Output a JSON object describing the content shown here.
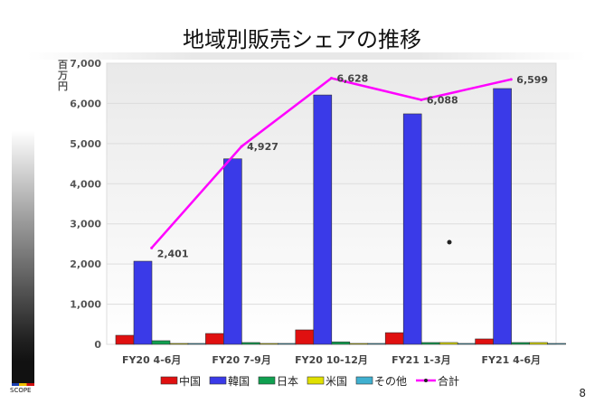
{
  "page_number": "8",
  "logo_text": "SCOPE",
  "chart_data": {
    "type": "bar",
    "title": "地域別販売シェアの推移",
    "ylabel": "百万円",
    "ylim": [
      0,
      7000
    ],
    "yticks": [
      "0",
      "1,000",
      "2,000",
      "3,000",
      "4,000",
      "5,000",
      "6,000",
      "7,000"
    ],
    "grid": true,
    "legend_position": "bottom",
    "categories": [
      "FY20 4-6月",
      "FY20 7-9月",
      "FY20 10-12月",
      "FY21 1-3月",
      "FY21 4-6月"
    ],
    "series": [
      {
        "name": "中国",
        "type": "bar",
        "color": "#e01010",
        "values": [
          225,
          270,
          360,
          290,
          135
        ]
      },
      {
        "name": "韓国",
        "type": "bar",
        "color": "#3a3ae8",
        "values": [
          2070,
          4620,
          6210,
          5740,
          6370
        ]
      },
      {
        "name": "日本",
        "type": "bar",
        "color": "#10a050",
        "values": [
          90,
          30,
          60,
          15,
          40
        ]
      },
      {
        "name": "米国",
        "type": "bar",
        "color": "#e0e000",
        "values": [
          0,
          0,
          0,
          20,
          30
        ]
      },
      {
        "name": "その他",
        "type": "bar",
        "color": "#40b0d0",
        "values": [
          0,
          0,
          0,
          0,
          0
        ]
      },
      {
        "name": "合計",
        "type": "line",
        "color": "#ff00ff",
        "values": [
          2401,
          4927,
          6628,
          6088,
          6599
        ],
        "labels": [
          "2,401",
          "4,927",
          "6,628",
          "6,088",
          "6,599"
        ]
      }
    ]
  }
}
